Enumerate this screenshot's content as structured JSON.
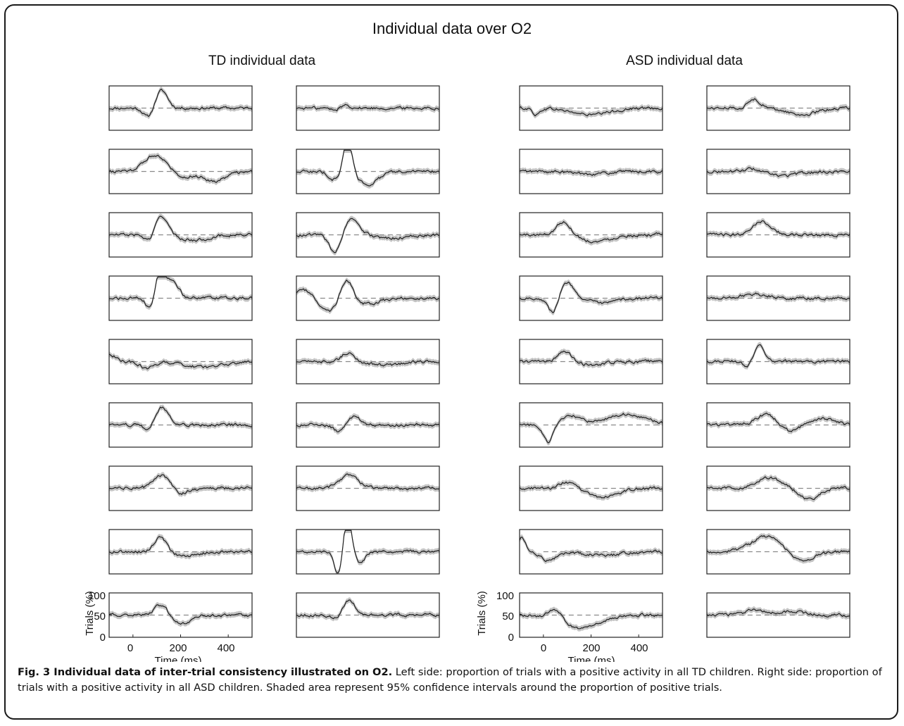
{
  "figure": {
    "title": "Individual data over O2",
    "left_group_title": "TD individual data",
    "right_group_title": "ASD individual data",
    "caption_label": "Fig. 3 Individual data of inter-trial consistency illustrated on O2.",
    "caption_text": " Left side: proportion of trials with a positive activity in all TD children. Right side: proportion of trials with a positive activity in all ASD children. Shaded area represent 95% confidence intervals around the proportion of positive trials."
  },
  "chart_data": {
    "type": "line",
    "panel_grid": "9 rows x 4 columns of small line plots (2 columns TD, 2 columns ASD)",
    "xlabel": "Time (ms)",
    "ylabel": "Trials (%)",
    "xlim": [
      -100,
      500
    ],
    "ylim": [
      0,
      100
    ],
    "xticks": [
      "0",
      "200",
      "400"
    ],
    "yticks": [
      "100",
      "50",
      "0"
    ],
    "reference_line": 50,
    "shaded_band": "95% confidence interval",
    "colors": {
      "line": "#1e1e1e",
      "band": "#c4c4c4",
      "reference": "#8a8a8a",
      "axes": "#222222"
    },
    "groups": [
      {
        "name": "TD individual data",
        "columns": 2,
        "rows": 9,
        "panels": [
          {
            "peaks": [
              [
                65,
                -22,
                20
              ],
              [
                120,
                40,
                25
              ]
            ]
          },
          {
            "peaks": [
              [
                95,
                10,
                25
              ],
              [
                70,
                -10,
                20
              ]
            ]
          },
          {
            "peaks": [
              [
                95,
                38,
                45
              ],
              [
                210,
                -12,
                40
              ],
              [
                340,
                -22,
                45
              ]
            ]
          },
          {
            "peaks": [
              [
                115,
                78,
                18
              ],
              [
                60,
                -18,
                25
              ],
              [
                200,
                -28,
                45
              ]
            ]
          },
          {
            "peaks": [
              [
                120,
                45,
                25
              ],
              [
                70,
                -15,
                20
              ],
              [
                260,
                -12,
                60
              ]
            ]
          },
          {
            "peaks": [
              [
                65,
                -45,
                25
              ],
              [
                125,
                35,
                35
              ],
              [
                300,
                -8,
                60
              ]
            ]
          },
          {
            "peaks": [
              [
                75,
                -30,
                18
              ],
              [
                115,
                65,
                22
              ],
              [
                170,
                35,
                25
              ]
            ]
          },
          {
            "peaks": [
              [
                -70,
                20,
                30
              ],
              [
                40,
                -30,
                35
              ],
              [
                110,
                48,
                25
              ],
              [
                200,
                -12,
                50
              ]
            ]
          },
          {
            "peaks": [
              [
                -100,
                18,
                25
              ],
              [
                60,
                -15,
                30
              ],
              [
                300,
                -12,
                80
              ]
            ]
          },
          {
            "peaks": [
              [
                115,
                20,
                25
              ],
              [
                270,
                -8,
                60
              ]
            ]
          },
          {
            "peaks": [
              [
                120,
                40,
                30
              ],
              [
                70,
                -15,
                20
              ]
            ]
          },
          {
            "peaks": [
              [
                80,
                -15,
                25
              ],
              [
                140,
                20,
                25
              ]
            ]
          },
          {
            "peaks": [
              [
                120,
                30,
                35
              ],
              [
                200,
                -12,
                30
              ]
            ]
          },
          {
            "peaks": [
              [
                120,
                30,
                40
              ]
            ]
          },
          {
            "peaks": [
              [
                115,
                35,
                25
              ],
              [
                220,
                -10,
                50
              ]
            ]
          },
          {
            "peaks": [
              [
                115,
                82,
                16
              ],
              [
                75,
                -55,
                16
              ],
              [
                165,
                -28,
                20
              ]
            ]
          },
          {
            "peaks": [
              [
                120,
                25,
                30
              ],
              [
                200,
                -20,
                40
              ]
            ]
          },
          {
            "peaks": [
              [
                120,
                35,
                25
              ],
              [
                70,
                -10,
                20
              ]
            ]
          }
        ]
      },
      {
        "name": "ASD individual data",
        "columns": 2,
        "rows": 9,
        "panels": [
          {
            "peaks": [
              [
                -30,
                -15,
                15
              ],
              [
                200,
                -15,
                80
              ]
            ]
          },
          {
            "peaks": [
              [
                100,
                20,
                25
              ],
              [
                300,
                -15,
                60
              ]
            ]
          },
          {
            "peaks": [
              [
                200,
                -5,
                80
              ]
            ]
          },
          {
            "peaks": [
              [
                100,
                10,
                40
              ],
              [
                200,
                -10,
                80
              ]
            ]
          },
          {
            "peaks": [
              [
                85,
                30,
                30
              ],
              [
                220,
                -15,
                60
              ]
            ]
          },
          {
            "peaks": [
              [
                130,
                30,
                40
              ]
            ]
          },
          {
            "peaks": [
              [
                40,
                -35,
                20
              ],
              [
                100,
                35,
                30
              ],
              [
                250,
                -12,
                50
              ]
            ]
          },
          {
            "peaks": [
              [
                100,
                10,
                50
              ]
            ]
          },
          {
            "peaks": [
              [
                90,
                25,
                25
              ],
              [
                200,
                -8,
                50
              ]
            ]
          },
          {
            "peaks": [
              [
                120,
                35,
                20
              ],
              [
                70,
                -10,
                20
              ]
            ]
          },
          {
            "peaks": [
              [
                20,
                -40,
                20
              ],
              [
                120,
                20,
                40
              ],
              [
                350,
                25,
                80
              ]
            ]
          },
          {
            "peaks": [
              [
                150,
                25,
                40
              ],
              [
                250,
                -15,
                40
              ],
              [
                380,
                15,
                50
              ]
            ]
          },
          {
            "peaks": [
              [
                100,
                15,
                30
              ],
              [
                250,
                -20,
                60
              ]
            ]
          },
          {
            "peaks": [
              [
                160,
                25,
                50
              ],
              [
                330,
                -25,
                40
              ]
            ]
          },
          {
            "peaks": [
              [
                -90,
                30,
                15
              ],
              [
                20,
                -20,
                30
              ],
              [
                250,
                -8,
                80
              ]
            ]
          },
          {
            "peaks": [
              [
                150,
                35,
                60
              ],
              [
                300,
                -20,
                50
              ]
            ]
          },
          {
            "peaks": [
              [
                50,
                25,
                30
              ],
              [
                150,
                -30,
                80
              ]
            ]
          },
          {
            "peaks": [
              [
                100,
                12,
                40
              ],
              [
                250,
                8,
                60
              ]
            ]
          }
        ]
      }
    ]
  }
}
